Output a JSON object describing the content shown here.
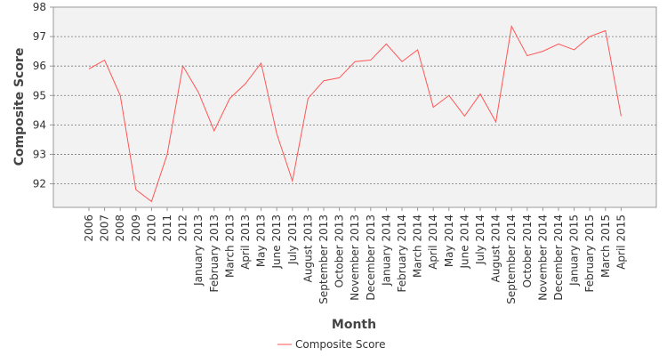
{
  "chart_data": {
    "type": "line",
    "title": "",
    "xlabel": "Month",
    "ylabel": "Composite Score",
    "ylim": [
      91.2,
      98
    ],
    "yticks": [
      92,
      93,
      94,
      95,
      96,
      97,
      98
    ],
    "grid": true,
    "legend_position": "bottom-center",
    "categories": [
      "2006",
      "2007",
      "2008",
      "2009",
      "2010",
      "2011",
      "2012",
      "January 2013",
      "February 2013",
      "March 2013",
      "April 2013",
      "May 2013",
      "June 2013",
      "July 2013",
      "August 2013",
      "September 2013",
      "October 2013",
      "November 2013",
      "December 2013",
      "January 2014",
      "February 2014",
      "March 2014",
      "April 2014",
      "May 2014",
      "June 2014",
      "July 2014",
      "August 2014",
      "September 2014",
      "October 2014",
      "November 2014",
      "December 2014",
      "January 2015",
      "February 2015",
      "March 2015",
      "April 2015"
    ],
    "series": [
      {
        "name": "Composite Score",
        "color": "#ff5555",
        "values": [
          95.9,
          96.2,
          95.0,
          91.8,
          91.4,
          93.0,
          96.0,
          95.1,
          93.8,
          94.9,
          95.4,
          96.1,
          93.7,
          92.1,
          94.9,
          95.5,
          95.6,
          96.15,
          96.2,
          96.75,
          96.15,
          96.55,
          94.6,
          95.0,
          94.3,
          95.05,
          94.1,
          97.35,
          96.35,
          96.5,
          96.75,
          96.55,
          97.0,
          97.2,
          94.3
        ]
      }
    ]
  },
  "colors": {
    "plot_background": "#f2f2f2",
    "grid": "#777777",
    "axis": "#999999"
  }
}
